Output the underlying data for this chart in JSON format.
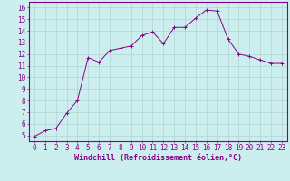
{
  "x": [
    0,
    1,
    2,
    3,
    4,
    5,
    6,
    7,
    8,
    9,
    10,
    11,
    12,
    13,
    14,
    15,
    16,
    17,
    18,
    19,
    20,
    21,
    22,
    23
  ],
  "y": [
    4.9,
    5.4,
    5.6,
    6.9,
    8.0,
    11.7,
    11.3,
    12.3,
    12.5,
    12.7,
    13.6,
    13.9,
    12.9,
    14.3,
    14.3,
    15.1,
    15.8,
    15.7,
    13.3,
    12.0,
    11.8,
    11.5,
    11.2,
    11.2
  ],
  "line_color": "#880088",
  "marker_color": "#880088",
  "bg_color": "#cceeee",
  "grid_color": "#aacccc",
  "axis_color": "#880088",
  "tick_label_color": "#880088",
  "xlabel": "Windchill (Refroidissement éolien,°C)",
  "ylim": [
    4.5,
    16.5
  ],
  "xlim": [
    -0.5,
    23.5
  ],
  "yticks": [
    5,
    6,
    7,
    8,
    9,
    10,
    11,
    12,
    13,
    14,
    15,
    16
  ],
  "xticks": [
    0,
    1,
    2,
    3,
    4,
    5,
    6,
    7,
    8,
    9,
    10,
    11,
    12,
    13,
    14,
    15,
    16,
    17,
    18,
    19,
    20,
    21,
    22,
    23
  ],
  "font_size": 5.5,
  "xlabel_fontsize": 6.0,
  "linewidth": 0.7,
  "markersize": 2.5
}
